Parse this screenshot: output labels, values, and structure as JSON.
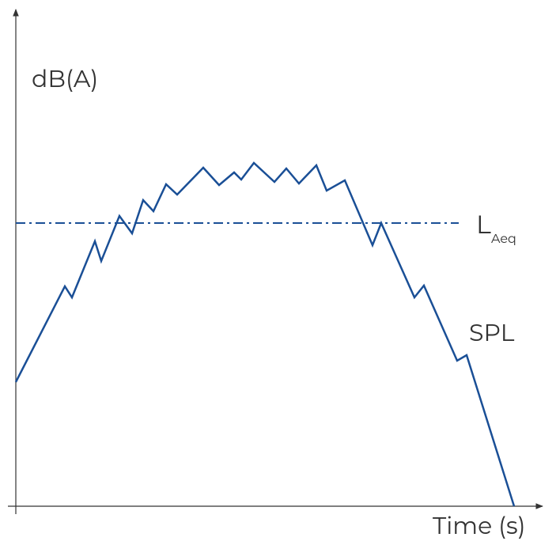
{
  "axes": {
    "y_label": "dB(A)",
    "x_label": "Time (s)"
  },
  "labels": {
    "leq_main": "L",
    "leq_sub": "Aeq",
    "spl": "SPL"
  }
}
